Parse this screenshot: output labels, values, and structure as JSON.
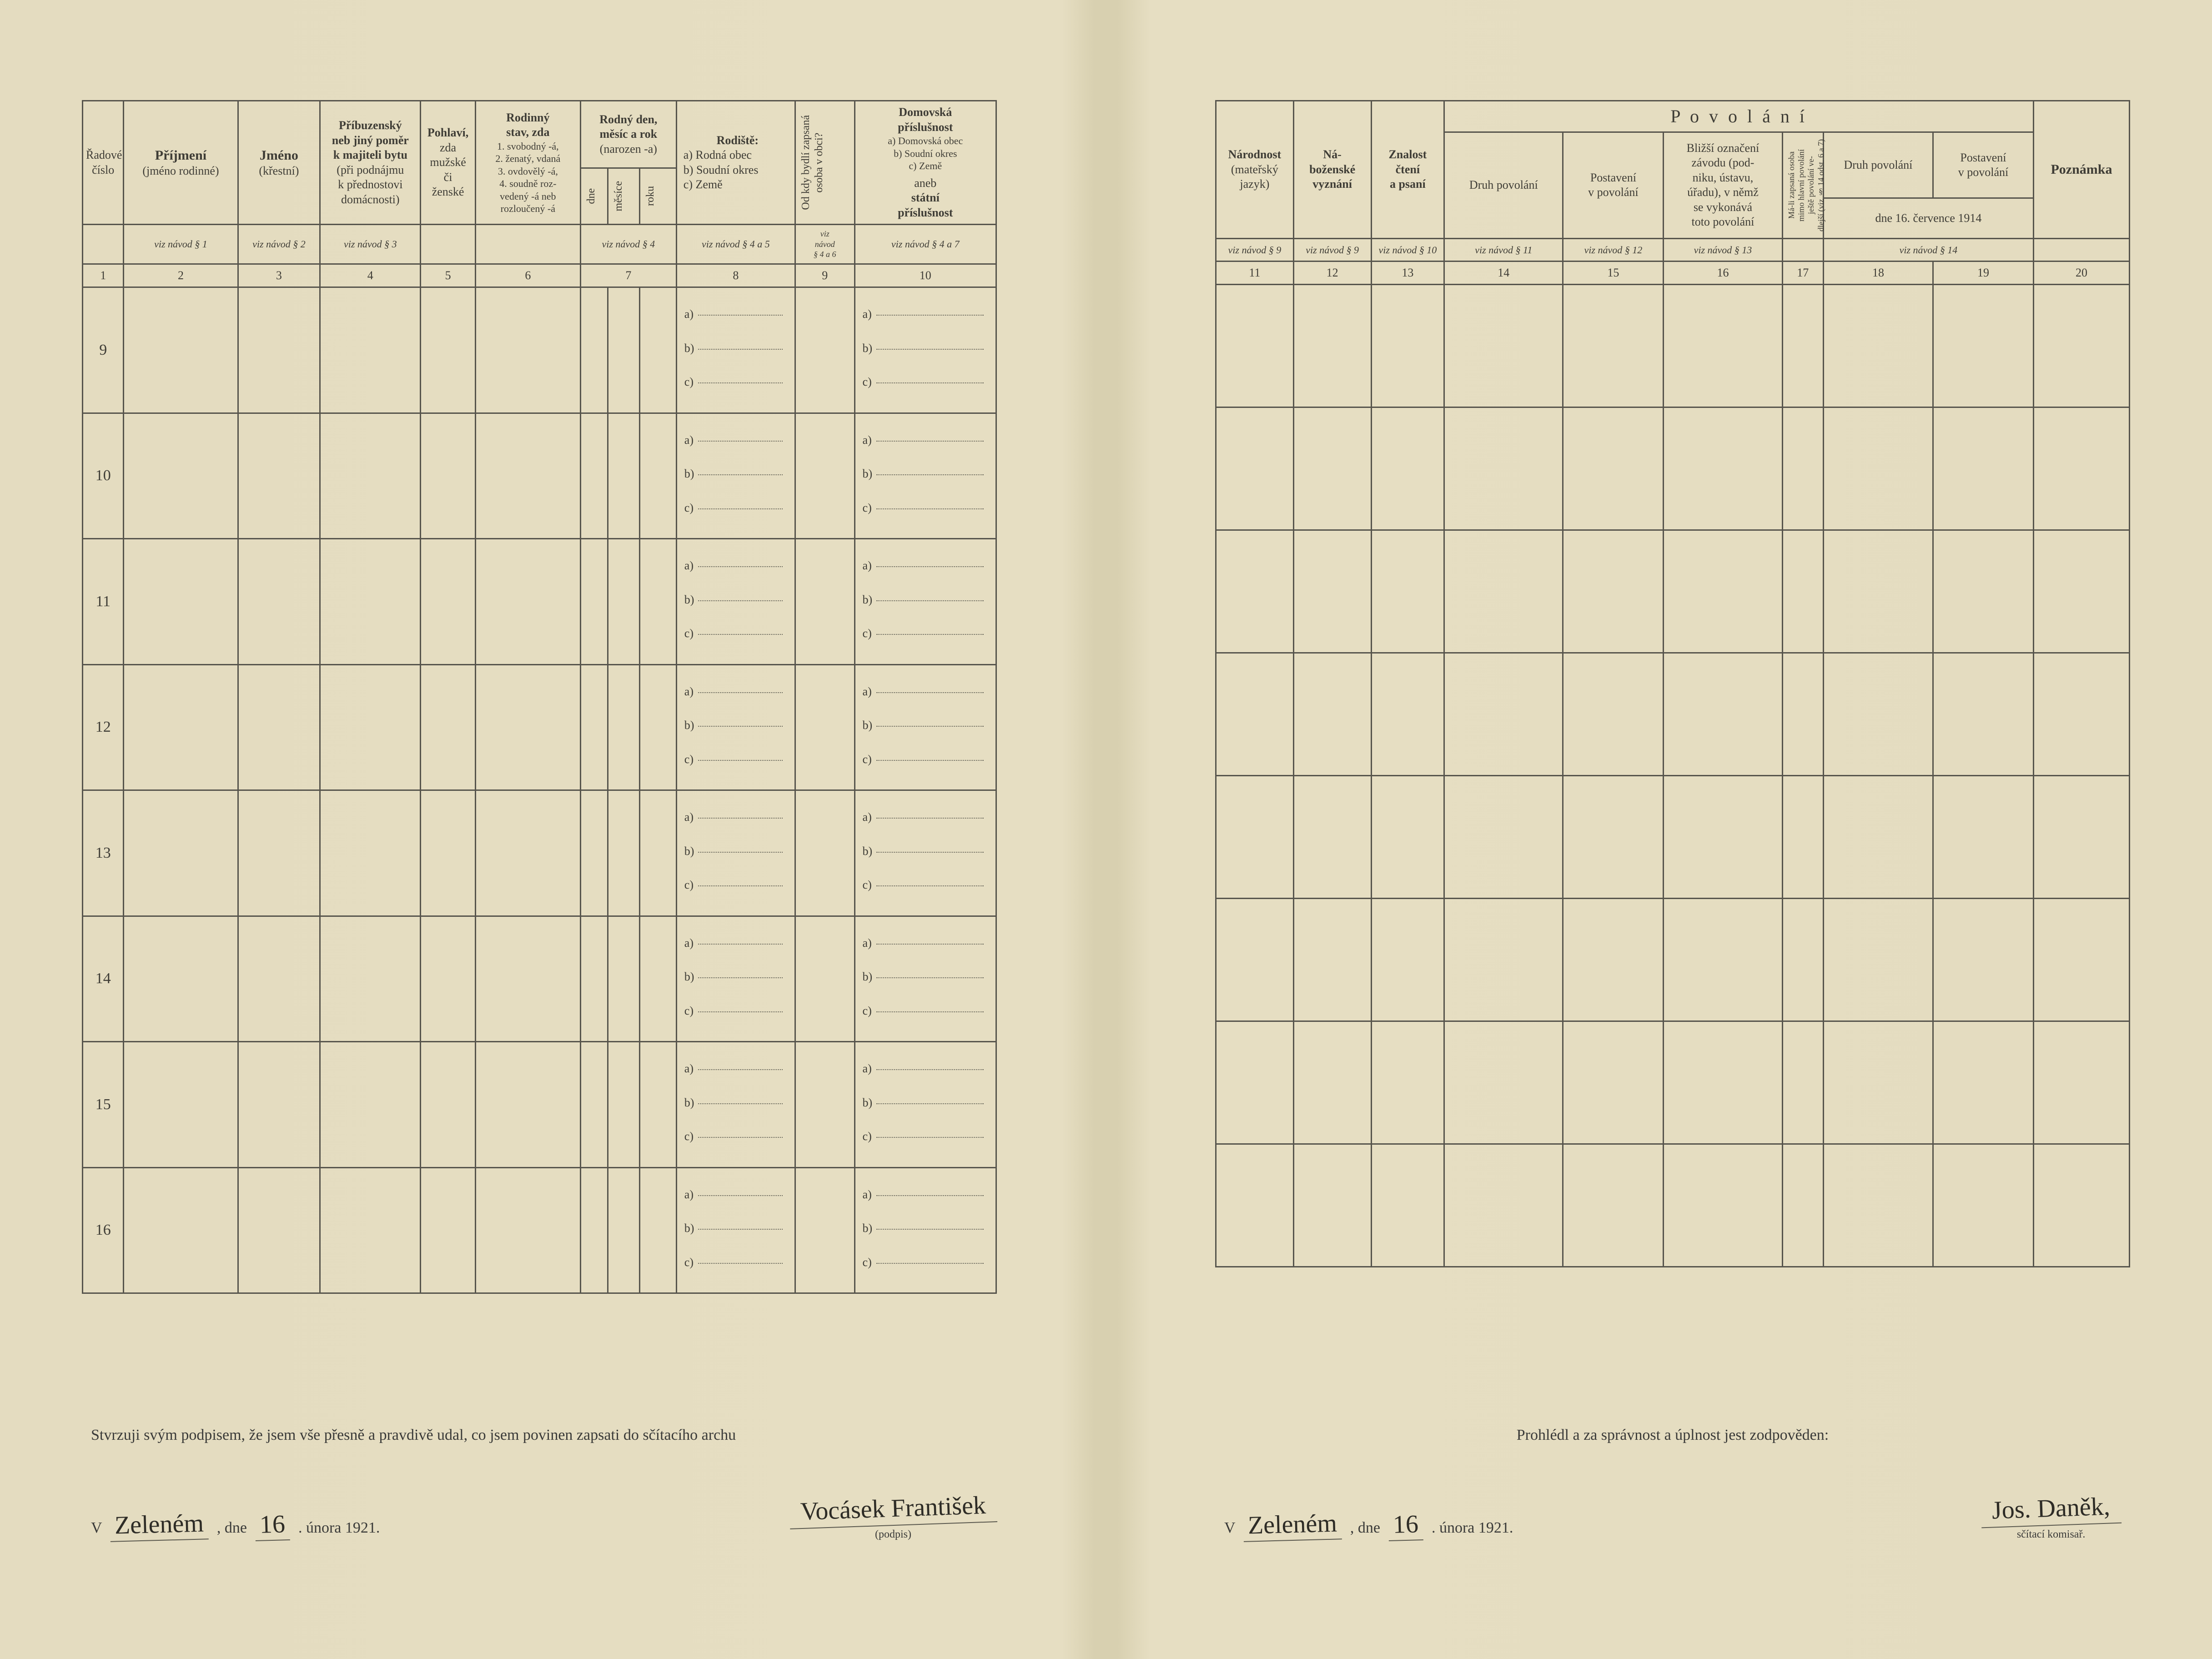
{
  "colors": {
    "paper": "#e4dcc0",
    "ink": "#3a3a38",
    "rule": "#56544c",
    "dotted": "#6a685c"
  },
  "left": {
    "columns": {
      "c1": "Řadové\nčíslo",
      "c2": {
        "title": "Příjmení",
        "sub": "(jméno rodinné)"
      },
      "c3": {
        "title": "Jméno",
        "sub": "(křestní)"
      },
      "c4": {
        "title": "Příbuzenský\nneb jiný poměr\nk majiteli bytu",
        "sub": "(při podnájmu\nk přednostovi\ndomácnosti)"
      },
      "c5": {
        "title": "Pohlaví,",
        "sub": "zda\nmužské\nči\nženské"
      },
      "c6": {
        "title": "Rodinný\nstav, zda",
        "sub": "1. svobodný -á,\n2. ženatý, vdaná\n3. ovdovělý -á,\n4. soudně roz-\nvedený -á neb\nrozloučený -á"
      },
      "c7": {
        "title": "Rodný den,\nměsíc a rok",
        "sub": "(narozen -a)",
        "dne": "dne",
        "mesice": "měsíce",
        "roku": "roku"
      },
      "c8": {
        "title": "Rodiště:",
        "a": "a) Rodná obec",
        "b": "b) Soudní okres",
        "c": "c) Země"
      },
      "c9": "Od kdy bydlí zapsaná\nosoba v obci?",
      "c10": {
        "title": "Domovská\npříslušnost",
        "sub": "a) Domovská obec\nb) Soudní okres\nc) Země",
        "aneb": "aneb",
        "statni": "státní\npříslušnost"
      }
    },
    "refs": [
      "",
      "viz návod § 1",
      "viz návod § 2",
      "viz návod § 3",
      "",
      "",
      "viz návod § 4",
      "viz návod § 4 a 5",
      "viz\nnávod\n§ 4 a 6",
      "viz návod § 4 a 7"
    ],
    "nums": [
      "1",
      "2",
      "3",
      "4",
      "5",
      "6",
      "7",
      "8",
      "9",
      "10"
    ],
    "row_numbers": [
      "9",
      "10",
      "11",
      "12",
      "13",
      "14",
      "15",
      "16"
    ],
    "abc_labels": [
      "a)",
      "b)",
      "c)"
    ],
    "footer": {
      "statement": "Stvrzuji svým podpisem, že jsem vše přesně a pravdivě udal, co jsem povinen zapsati do sčítacího archu",
      "v": "V",
      "place": "Zeleném",
      "dne": ", dne",
      "day": "16",
      "month_year": ". února 1921.",
      "sig": "Vocásek František",
      "sigsub": "(podpis)"
    }
  },
  "right": {
    "columns": {
      "c11": {
        "title": "Národnost",
        "sub": "(mateřský\njazyk)"
      },
      "c12": {
        "title": "Ná-\nboženské\nvyznání"
      },
      "c13": {
        "title": "Znalost\nčtení\na psaní"
      },
      "povolani": "P o v o l á n í",
      "c14": "Druh povolání",
      "c15": "Postavení\nv povolání",
      "c16": {
        "title": "Bližší označení\nzávodu (pod-\nniku, ústavu,\núřadu), v němž\nse vykonává\ntoto povolání"
      },
      "c17": "Má-li zapsaná osoba\nmimo hlavní povolání\nještě povolání ve-\ndlejší (viz § 14 odst. 6 a 7)",
      "c18": "Druh povolání",
      "c19": "Postavení\nv povolání",
      "c1819_sub": "dne 16. července 1914",
      "c20": "Poznámka"
    },
    "refs": [
      "viz návod § 9",
      "viz návod § 9",
      "viz návod § 10",
      "viz návod § 11",
      "viz návod § 12",
      "viz návod § 13",
      "",
      "viz návod § 14",
      "",
      ""
    ],
    "nums": [
      "11",
      "12",
      "13",
      "14",
      "15",
      "16",
      "17",
      "18",
      "19",
      "20"
    ],
    "row_count": 8,
    "footer": {
      "statement": "Prohlédl a za správnost a úplnost jest zodpověden:",
      "v": "V",
      "place": "Zeleném",
      "dne": ", dne",
      "day": "16",
      "month_year": ". února 1921.",
      "sig": "Jos. Daněk,",
      "sigsub": "sčítací komisař."
    }
  }
}
